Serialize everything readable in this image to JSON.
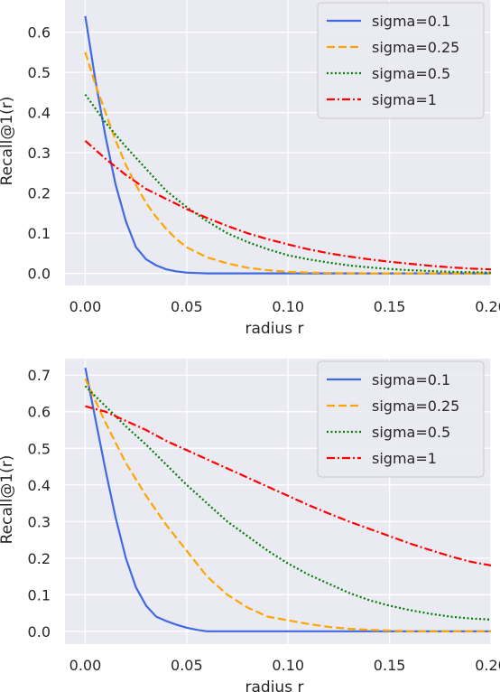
{
  "chart_data": [
    {
      "type": "line",
      "xlabel": "radius r",
      "ylabel": "Recall@1(r)",
      "xlim": [
        -0.01,
        0.2
      ],
      "ylim": [
        -0.03,
        0.68
      ],
      "xticks": [
        0.0,
        0.05,
        0.1,
        0.15,
        0.2
      ],
      "xtick_labels": [
        "0.00",
        "0.05",
        "0.10",
        "0.15",
        "0.20"
      ],
      "yticks": [
        0.0,
        0.1,
        0.2,
        0.3,
        0.4,
        0.5,
        0.6
      ],
      "ytick_labels": [
        "0.0",
        "0.1",
        "0.2",
        "0.3",
        "0.4",
        "0.5",
        "0.6"
      ],
      "grid": true,
      "legend_position": "top-right",
      "series": [
        {
          "name": "sigma=0.1",
          "color": "#4169e1",
          "style": "solid",
          "x": [
            0.0,
            0.005,
            0.01,
            0.015,
            0.02,
            0.025,
            0.03,
            0.035,
            0.04,
            0.045,
            0.05,
            0.055,
            0.06,
            0.08,
            0.1,
            0.12,
            0.14,
            0.16,
            0.18,
            0.2
          ],
          "y": [
            0.64,
            0.48,
            0.34,
            0.22,
            0.13,
            0.065,
            0.035,
            0.02,
            0.01,
            0.005,
            0.002,
            0.001,
            0.0,
            0.0,
            0.0,
            0.0,
            0.0,
            0.0,
            0.0,
            0.0
          ]
        },
        {
          "name": "sigma=0.25",
          "color": "#ffa500",
          "style": "dashed",
          "x": [
            0.0,
            0.005,
            0.01,
            0.015,
            0.02,
            0.025,
            0.03,
            0.035,
            0.04,
            0.045,
            0.05,
            0.06,
            0.07,
            0.08,
            0.09,
            0.1,
            0.11,
            0.12,
            0.14,
            0.16,
            0.18,
            0.2
          ],
          "y": [
            0.55,
            0.47,
            0.4,
            0.33,
            0.27,
            0.22,
            0.175,
            0.14,
            0.11,
            0.085,
            0.065,
            0.04,
            0.025,
            0.014,
            0.008,
            0.004,
            0.002,
            0.001,
            0.0,
            0.0,
            0.0,
            0.0
          ]
        },
        {
          "name": "sigma=0.5",
          "color": "#008000",
          "style": "dotted",
          "x": [
            0.0,
            0.01,
            0.02,
            0.03,
            0.04,
            0.05,
            0.06,
            0.07,
            0.08,
            0.09,
            0.1,
            0.11,
            0.12,
            0.13,
            0.14,
            0.15,
            0.16,
            0.17,
            0.18,
            0.19,
            0.2
          ],
          "y": [
            0.445,
            0.375,
            0.315,
            0.26,
            0.205,
            0.165,
            0.13,
            0.1,
            0.078,
            0.06,
            0.045,
            0.035,
            0.027,
            0.02,
            0.015,
            0.011,
            0.008,
            0.006,
            0.004,
            0.003,
            0.002
          ]
        },
        {
          "name": "sigma=1",
          "color": "#ff0000",
          "style": "dashdot",
          "x": [
            0.0,
            0.01,
            0.02,
            0.03,
            0.04,
            0.05,
            0.06,
            0.07,
            0.08,
            0.09,
            0.1,
            0.11,
            0.12,
            0.13,
            0.14,
            0.15,
            0.16,
            0.17,
            0.18,
            0.19,
            0.2
          ],
          "y": [
            0.33,
            0.285,
            0.245,
            0.21,
            0.185,
            0.16,
            0.138,
            0.118,
            0.1,
            0.085,
            0.072,
            0.06,
            0.05,
            0.042,
            0.035,
            0.029,
            0.024,
            0.019,
            0.015,
            0.012,
            0.01
          ]
        }
      ]
    },
    {
      "type": "line",
      "xlabel": "radius r",
      "ylabel": "Recall@1(r)",
      "xlim": [
        -0.01,
        0.2
      ],
      "ylim": [
        -0.035,
        0.745
      ],
      "xticks": [
        0.0,
        0.05,
        0.1,
        0.15,
        0.2
      ],
      "xtick_labels": [
        "0.00",
        "0.05",
        "0.10",
        "0.15",
        "0.20"
      ],
      "yticks": [
        0.0,
        0.1,
        0.2,
        0.3,
        0.4,
        0.5,
        0.6,
        0.7
      ],
      "ytick_labels": [
        "0.0",
        "0.1",
        "0.2",
        "0.3",
        "0.4",
        "0.5",
        "0.6",
        "0.7"
      ],
      "grid": true,
      "legend_position": "top-right",
      "series": [
        {
          "name": "sigma=0.1",
          "color": "#4169e1",
          "style": "solid",
          "x": [
            0.0,
            0.005,
            0.01,
            0.015,
            0.02,
            0.025,
            0.03,
            0.035,
            0.04,
            0.045,
            0.05,
            0.055,
            0.06,
            0.08,
            0.1,
            0.12,
            0.14,
            0.16,
            0.18,
            0.2
          ],
          "y": [
            0.72,
            0.58,
            0.44,
            0.31,
            0.2,
            0.12,
            0.07,
            0.04,
            0.028,
            0.018,
            0.01,
            0.004,
            0.0,
            0.0,
            0.0,
            0.0,
            0.0,
            0.0,
            0.0,
            0.0
          ]
        },
        {
          "name": "sigma=0.25",
          "color": "#ffa500",
          "style": "dashed",
          "x": [
            0.0,
            0.01,
            0.02,
            0.03,
            0.04,
            0.05,
            0.06,
            0.07,
            0.08,
            0.09,
            0.1,
            0.11,
            0.12,
            0.13,
            0.14,
            0.15,
            0.16,
            0.18,
            0.2
          ],
          "y": [
            0.69,
            0.57,
            0.46,
            0.37,
            0.29,
            0.22,
            0.15,
            0.1,
            0.065,
            0.04,
            0.03,
            0.02,
            0.012,
            0.007,
            0.004,
            0.002,
            0.0,
            0.0,
            0.0
          ]
        },
        {
          "name": "sigma=0.5",
          "color": "#008000",
          "style": "dotted",
          "x": [
            0.0,
            0.01,
            0.02,
            0.03,
            0.04,
            0.05,
            0.06,
            0.07,
            0.08,
            0.09,
            0.1,
            0.11,
            0.12,
            0.13,
            0.14,
            0.15,
            0.16,
            0.17,
            0.18,
            0.19,
            0.2
          ],
          "y": [
            0.67,
            0.615,
            0.56,
            0.51,
            0.455,
            0.4,
            0.35,
            0.3,
            0.26,
            0.22,
            0.185,
            0.155,
            0.13,
            0.105,
            0.085,
            0.07,
            0.058,
            0.048,
            0.04,
            0.035,
            0.032
          ]
        },
        {
          "name": "sigma=1",
          "color": "#ff0000",
          "style": "dashdot",
          "x": [
            0.0,
            0.01,
            0.02,
            0.03,
            0.04,
            0.05,
            0.06,
            0.07,
            0.08,
            0.09,
            0.1,
            0.11,
            0.12,
            0.13,
            0.14,
            0.15,
            0.16,
            0.17,
            0.18,
            0.19,
            0.2
          ],
          "y": [
            0.615,
            0.6,
            0.575,
            0.55,
            0.52,
            0.495,
            0.47,
            0.445,
            0.42,
            0.395,
            0.37,
            0.345,
            0.322,
            0.3,
            0.28,
            0.26,
            0.24,
            0.222,
            0.205,
            0.19,
            0.18
          ]
        }
      ]
    }
  ]
}
